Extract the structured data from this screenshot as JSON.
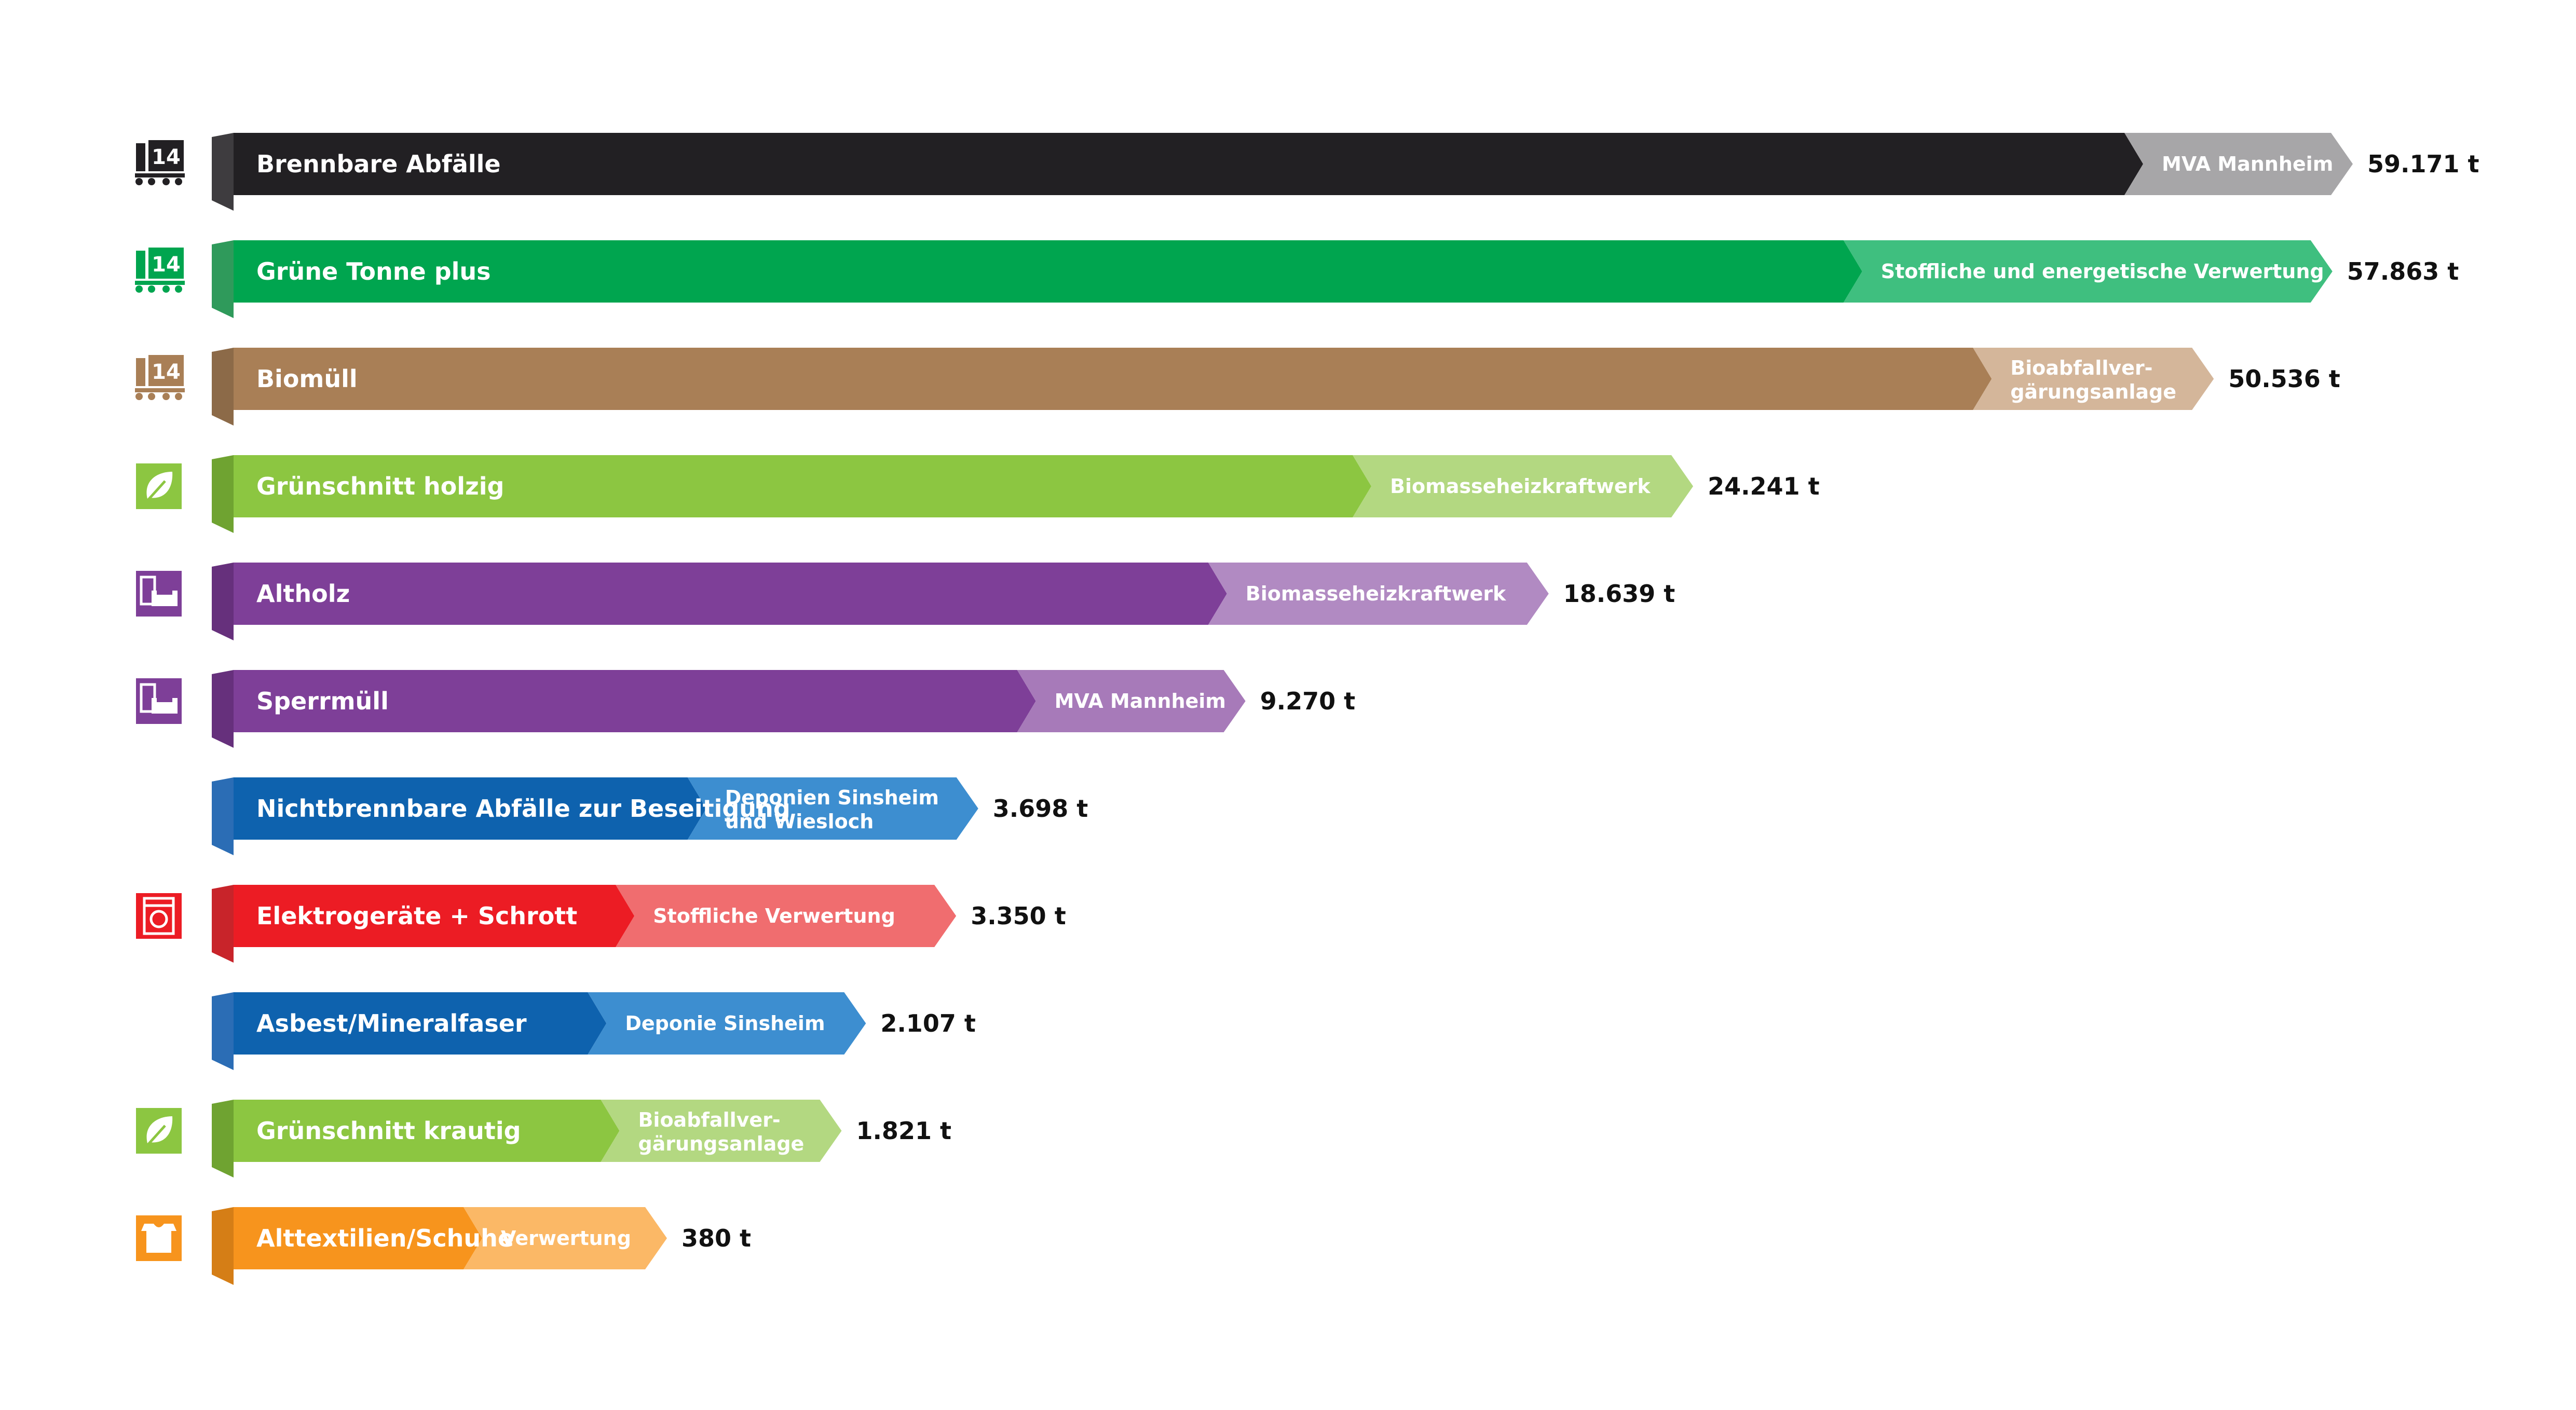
{
  "chart_data": {
    "type": "bar",
    "orientation": "horizontal",
    "unit": "t",
    "rows": [
      {
        "category": "Brennbare Abfälle",
        "destination": [
          "MVA Mannheim"
        ],
        "value": 59171,
        "value_label": "59.171 t",
        "icon": "truck-14-icon",
        "color": "#222023",
        "dest_color": "#a7a6a8",
        "cap_color": "#3e3c3f"
      },
      {
        "category": "Grüne Tonne plus",
        "destination": [
          "Stoffliche und energetische  Verwertung"
        ],
        "value": 57863,
        "value_label": "57.863 t",
        "icon": "truck-14-icon",
        "color": "#00a54f",
        "dest_color": "#3fbf7f",
        "cap_color": "#2f9a5b"
      },
      {
        "category": "Biomüll",
        "destination": [
          "Bioabfallver-",
          "gärungsanlage"
        ],
        "value": 50536,
        "value_label": "50.536 t",
        "icon": "truck-14-icon",
        "color": "#a97f56",
        "dest_color": "#d4b69a",
        "cap_color": "#8c6a48"
      },
      {
        "category": "Grünschnitt holzig",
        "destination": [
          "Biomasseheizkraftwerk"
        ],
        "value": 24241,
        "value_label": "24.241 t",
        "icon": "leaf-icon",
        "color": "#8cc641",
        "dest_color": "#b3d881",
        "cap_color": "#6fa331"
      },
      {
        "category": "Altholz",
        "destination": [
          "Biomasseheizkraftwerk"
        ],
        "value": 18639,
        "value_label": "18.639 t",
        "icon": "furniture-icon",
        "color": "#7e3f98",
        "dest_color": "#b18ac2",
        "cap_color": "#66307c"
      },
      {
        "category": "Sperrmüll",
        "destination": [
          "MVA Mannheim"
        ],
        "value": 9270,
        "value_label": "9.270 t",
        "icon": "furniture-icon",
        "color": "#7e3f98",
        "dest_color": "#a77ab9",
        "cap_color": "#66307c"
      },
      {
        "category": "Nichtbrennbare Abfälle zur Beseitigung",
        "destination": [
          "Deponien Sinsheim",
          "und Wiesloch"
        ],
        "value": 3698,
        "value_label": "3.698 t",
        "icon": "",
        "color": "#0e62ae",
        "dest_color": "#3d8ed0",
        "cap_color": "#2b6db5"
      },
      {
        "category": "Elektrogeräte + Schrott",
        "destination": [
          "Stoffliche Verwertung"
        ],
        "value": 3350,
        "value_label": "3.350 t",
        "icon": "washing-machine-icon",
        "color": "#ec1c24",
        "dest_color": "#f06d6f",
        "cap_color": "#c8242a"
      },
      {
        "category": "Asbest/Mineralfaser",
        "destination": [
          "Deponie Sinsheim"
        ],
        "value": 2107,
        "value_label": "2.107 t",
        "icon": "",
        "color": "#0e62ae",
        "dest_color": "#3d8ed0",
        "cap_color": "#2b6db5"
      },
      {
        "category": "Grünschnitt krautig",
        "destination": [
          "Bioabfallver-",
          "gärungsanlage"
        ],
        "value": 1821,
        "value_label": "1.821 t",
        "icon": "leaf-icon",
        "color": "#8cc641",
        "dest_color": "#b3d881",
        "cap_color": "#6fa331"
      },
      {
        "category": "Alttextilien/Schuhe",
        "destination": [
          "Verwertung"
        ],
        "value": 380,
        "value_label": "380 t",
        "icon": "shirt-icon",
        "color": "#f7941d",
        "dest_color": "#fbb866",
        "cap_color": "#d57e16"
      }
    ],
    "legend": "none",
    "grid": false
  }
}
